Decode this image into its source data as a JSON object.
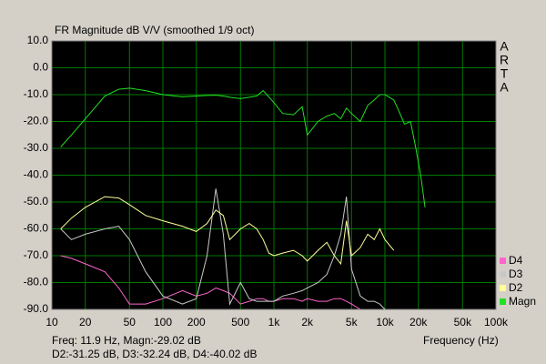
{
  "chart_data": {
    "type": "line",
    "title": "FR Magnitude dB V/V (smoothed 1/9 oct)",
    "xlabel": "Frequency (Hz)",
    "brand_letters": [
      "A",
      "R",
      "T",
      "A"
    ],
    "readout": [
      "Freq: 11.9 Hz, Magn:-29.02 dB",
      "D2:-31.25 dB, D3:-32.24 dB, D4:-40.02 dB"
    ],
    "xscale": "log",
    "grid": true,
    "legend": "lower right",
    "xlim": [
      10,
      100000
    ],
    "ylim": [
      -90,
      10
    ],
    "xticks": [
      10,
      20,
      50,
      100,
      200,
      500,
      {
        "value": 1000,
        "label": "1k"
      },
      {
        "value": 2000,
        "label": "2k"
      },
      {
        "value": 5000,
        "label": "5k"
      },
      {
        "value": 10000,
        "label": "10k"
      },
      {
        "value": 20000,
        "label": "20k"
      },
      {
        "value": 50000,
        "label": "50k"
      },
      {
        "value": 100000,
        "label": "100k"
      }
    ],
    "yticks": [
      {
        "value": 10,
        "label": "10.0"
      },
      {
        "value": 0,
        "label": "0.0"
      },
      {
        "value": -10,
        "label": "-10.0"
      },
      {
        "value": -20,
        "label": "-20.0"
      },
      {
        "value": -30,
        "label": "-30.0"
      },
      {
        "value": -40,
        "label": "-40.0"
      },
      {
        "value": -50,
        "label": "-50.0"
      },
      {
        "value": -60,
        "label": "-60.0"
      },
      {
        "value": -70,
        "label": "-70.0"
      },
      {
        "value": -80,
        "label": "-80.0"
      },
      {
        "value": -90,
        "label": "-90.0"
      }
    ],
    "x": [
      12,
      15,
      20,
      30,
      40,
      50,
      70,
      100,
      150,
      200,
      250,
      300,
      350,
      400,
      500,
      600,
      700,
      800,
      900,
      1000,
      1200,
      1500,
      1800,
      2000,
      2500,
      3000,
      3500,
      4000,
      4500,
      5000,
      6000,
      7000,
      8000,
      9000,
      10000,
      12000,
      13000,
      15000,
      17000,
      19000,
      21000,
      23000
    ],
    "series": [
      {
        "name": "Magn",
        "color": "#22e022",
        "values": [
          -29.5,
          -25,
          -19,
          -10.5,
          -8,
          -7.6,
          -8.5,
          -10,
          -10.8,
          -10.5,
          -10.3,
          -10.2,
          -10.5,
          -11,
          -11.5,
          -11,
          -10.5,
          -8.5,
          -10.8,
          -13,
          -17,
          -17.5,
          -14.5,
          -25,
          -20,
          -18,
          -17,
          -19,
          -15,
          -17,
          -20,
          -14,
          -12,
          -10,
          -10,
          -12,
          -15,
          -21,
          -20,
          -30,
          -40,
          -52
        ]
      },
      {
        "name": "D2",
        "color": "#ffff99",
        "values": [
          -60,
          -56,
          -52,
          -48,
          -48.5,
          -51,
          -55,
          -57,
          -59,
          -61,
          -58,
          -53,
          -55,
          -64,
          -60,
          -58,
          -60,
          -64,
          -69,
          -70,
          -69,
          -68,
          -70,
          -72,
          -68,
          -65,
          -70,
          -73,
          -57,
          -70,
          -67,
          -62,
          -64,
          -60,
          -64,
          -68,
          null,
          null,
          null,
          null,
          null,
          null
        ]
      },
      {
        "name": "D3",
        "color": "#c8c8c8",
        "values": [
          -60,
          -64,
          -62,
          -60,
          -59,
          -64,
          -76,
          -85,
          -88,
          -86,
          -70,
          -45,
          -62,
          -88,
          -80,
          -86,
          -87,
          -87,
          -87,
          -87,
          -85,
          -84,
          -83,
          -82,
          -80,
          -77,
          -70,
          -62,
          -48,
          -75,
          -85,
          -87,
          -87,
          -88,
          -90,
          null,
          null,
          null,
          null,
          null,
          null,
          null
        ]
      },
      {
        "name": "D4",
        "color": "#ff66cc",
        "values": [
          -70,
          -71,
          -73,
          -76,
          -82,
          -88,
          -88,
          -86,
          -83,
          -85,
          -84,
          -82,
          -83,
          -84,
          -88,
          -87,
          -86,
          -86,
          -87,
          -87,
          -86,
          -86,
          -87,
          -86,
          -87,
          -87,
          -86,
          -86,
          -87,
          -88,
          -90,
          null,
          null,
          null,
          null,
          null,
          null,
          null,
          null,
          null,
          null,
          null
        ]
      }
    ]
  }
}
